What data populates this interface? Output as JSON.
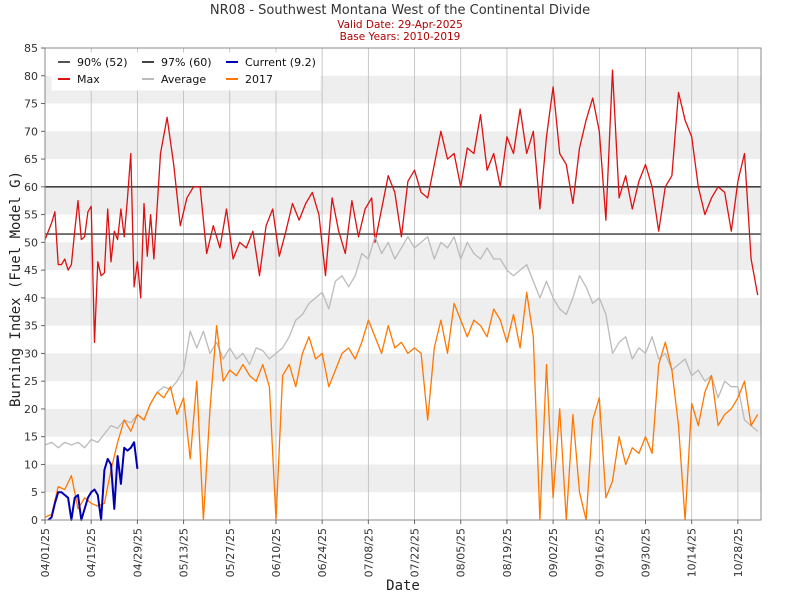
{
  "chart_data": {
    "type": "line",
    "title": "NR08 - Southwest Montana West of the Continental Divide",
    "subtitle_valid": "Valid Date: 29-Apr-2025",
    "subtitle_base": "Base Years: 2010-2019",
    "xlabel": "Date",
    "ylabel": "Burning Index (Fuel Model G)",
    "ylim": [
      0,
      85
    ],
    "yticks": [
      0,
      5,
      10,
      15,
      20,
      25,
      30,
      35,
      40,
      45,
      50,
      55,
      60,
      65,
      70,
      75,
      80,
      85
    ],
    "x_start": "04/01/25",
    "x_end": "11/04/25",
    "xticks": [
      "04/01/25",
      "04/15/25",
      "04/29/25",
      "05/13/25",
      "05/27/25",
      "06/10/25",
      "06/24/25",
      "07/08/25",
      "07/22/25",
      "08/05/25",
      "08/19/25",
      "09/02/25",
      "09/16/25",
      "09/30/25",
      "10/14/25",
      "10/28/25"
    ],
    "grid": "alternating horizontal bands, vertical gridlines at date ticks",
    "legend_placement": "top-left",
    "colors": {
      "p90": "#555555",
      "p97": "#444444",
      "current": "#0000b0",
      "max": "#dd1111",
      "average": "#bbbbbb",
      "y2017": "#ff7700",
      "band": "#eeeeee",
      "grid": "#bbbbbb"
    },
    "legend": [
      {
        "key": "p90",
        "label": "90% (52)"
      },
      {
        "key": "p97",
        "label": "97% (60)"
      },
      {
        "key": "current",
        "label": "Current (9.2)"
      },
      {
        "key": "max",
        "label": "Max"
      },
      {
        "key": "average",
        "label": "Average"
      },
      {
        "key": "y2017",
        "label": "2017"
      }
    ],
    "thresholds": [
      {
        "key": "p90",
        "value": 51.5
      },
      {
        "key": "p97",
        "value": 60
      }
    ],
    "series": [
      {
        "key": "max",
        "name": "Max",
        "x_days": [
          0,
          1,
          2,
          3,
          4,
          5,
          6,
          7,
          8,
          9,
          10,
          11,
          12,
          13,
          14,
          15,
          16,
          17,
          18,
          19,
          20,
          21,
          22,
          23,
          24,
          25,
          26,
          27,
          28,
          29,
          30,
          31,
          32,
          33,
          35,
          37,
          39,
          41,
          43,
          45,
          47,
          49,
          51,
          53,
          55,
          57,
          59,
          61,
          63,
          65,
          67,
          69,
          71,
          73,
          75,
          77,
          79,
          81,
          83,
          85,
          87,
          89,
          91,
          93,
          95,
          97,
          99,
          100,
          102,
          104,
          106,
          108,
          110,
          112,
          114,
          116,
          118,
          120,
          122,
          124,
          126,
          128,
          130,
          132,
          134,
          136,
          138,
          140,
          142,
          144,
          146,
          148,
          150,
          152,
          154,
          156,
          158,
          160,
          162,
          164,
          166,
          168,
          170,
          172,
          174,
          176,
          178,
          180,
          182,
          184,
          186,
          188,
          190,
          192,
          194,
          196,
          198,
          200,
          202,
          204,
          206,
          208,
          210,
          212,
          214,
          216
        ],
        "values": [
          50.5,
          52,
          53.5,
          55.5,
          46,
          46,
          47,
          45,
          46,
          52,
          57.5,
          50.5,
          51,
          55.5,
          56.5,
          32,
          46.5,
          44,
          44.5,
          56,
          46.5,
          52,
          50.5,
          56,
          51,
          58,
          66,
          42,
          46.5,
          40,
          57,
          47.5,
          55,
          47,
          66,
          72.5,
          64,
          53,
          58,
          60,
          60,
          48,
          53,
          49,
          56,
          47,
          50,
          49,
          52,
          44,
          53,
          56,
          47.5,
          52,
          57,
          54,
          57,
          59,
          55,
          44,
          58,
          52,
          48,
          57.5,
          51,
          56,
          58,
          50,
          56,
          62,
          59,
          51,
          61,
          63,
          59,
          58,
          64,
          70,
          65,
          66,
          60,
          67,
          66,
          73,
          63,
          66,
          60,
          69,
          66,
          74,
          66,
          70,
          56,
          69,
          78,
          66,
          64,
          57,
          67,
          72,
          76,
          70,
          54,
          81,
          58,
          62,
          56,
          61,
          64,
          60,
          52,
          60,
          62,
          77,
          72,
          69,
          60,
          55,
          58,
          60,
          59,
          52,
          61,
          66,
          47,
          40.5
        ]
      },
      {
        "key": "average",
        "name": "Average",
        "x_days": [
          0,
          2,
          4,
          6,
          8,
          10,
          12,
          14,
          16,
          18,
          20,
          22,
          24,
          26,
          28,
          30,
          32,
          34,
          36,
          38,
          40,
          42,
          44,
          46,
          48,
          50,
          52,
          54,
          56,
          58,
          60,
          62,
          64,
          66,
          68,
          70,
          72,
          74,
          76,
          78,
          80,
          82,
          84,
          86,
          88,
          90,
          92,
          94,
          96,
          98,
          100,
          102,
          104,
          106,
          108,
          110,
          112,
          114,
          116,
          118,
          120,
          122,
          124,
          126,
          128,
          130,
          132,
          134,
          136,
          138,
          140,
          142,
          144,
          146,
          148,
          150,
          152,
          154,
          156,
          158,
          160,
          162,
          164,
          166,
          168,
          170,
          172,
          174,
          176,
          178,
          180,
          182,
          184,
          186,
          188,
          190,
          192,
          194,
          196,
          198,
          200,
          202,
          204,
          206,
          208,
          210,
          212,
          214,
          216
        ],
        "values": [
          13.5,
          14,
          13,
          14,
          13.5,
          14,
          13,
          14.5,
          14,
          15.5,
          17,
          16.5,
          18,
          17.5,
          19,
          18,
          21,
          23,
          24,
          23.5,
          25,
          27,
          34,
          31,
          34,
          30,
          32,
          29,
          31,
          29,
          30,
          28,
          31,
          30.5,
          29,
          30,
          31,
          33,
          36,
          37,
          39,
          40,
          41,
          38,
          43,
          44,
          42,
          44,
          48,
          47,
          51,
          48,
          50,
          47,
          49,
          51,
          49,
          50,
          51,
          47,
          50,
          49,
          51,
          47,
          50,
          48,
          47,
          49,
          47,
          47,
          45,
          44,
          45,
          46,
          43,
          40,
          43,
          40,
          38,
          37,
          40,
          44,
          42,
          39,
          40,
          37,
          30,
          32,
          33,
          29,
          31,
          30,
          33,
          29,
          30,
          27,
          28,
          29,
          26,
          27,
          25,
          26,
          22,
          25,
          24,
          24,
          18,
          17,
          16
        ]
      },
      {
        "key": "y2017",
        "name": "2017",
        "x_days": [
          0,
          2,
          4,
          6,
          8,
          10,
          12,
          14,
          16,
          18,
          20,
          22,
          24,
          26,
          28,
          30,
          32,
          34,
          36,
          38,
          40,
          42,
          44,
          46,
          48,
          50,
          52,
          54,
          56,
          58,
          60,
          62,
          64,
          66,
          68,
          70,
          72,
          74,
          76,
          78,
          80,
          82,
          84,
          86,
          88,
          90,
          92,
          94,
          96,
          98,
          100,
          102,
          104,
          106,
          108,
          110,
          112,
          114,
          116,
          118,
          120,
          122,
          124,
          126,
          128,
          130,
          132,
          134,
          136,
          138,
          140,
          142,
          144,
          146,
          148,
          150,
          152,
          154,
          156,
          158,
          160,
          162,
          164,
          166,
          168,
          170,
          172,
          174,
          176,
          178,
          180,
          182,
          184,
          186,
          188,
          190,
          192,
          194,
          196,
          198,
          200,
          202,
          204,
          206,
          208,
          210,
          212,
          214,
          216
        ],
        "values": [
          0.5,
          1,
          6,
          5.5,
          8,
          2,
          4,
          3,
          2.5,
          3,
          9,
          14,
          18,
          16,
          19,
          18,
          21,
          23,
          22,
          24,
          19,
          22,
          11,
          25,
          0,
          20,
          35,
          25,
          27,
          26,
          28,
          26,
          25,
          28,
          24,
          0,
          26,
          28,
          24,
          30,
          33,
          29,
          30,
          24,
          27,
          30,
          31,
          29,
          32,
          36,
          33,
          30,
          35,
          31,
          32,
          30,
          31,
          30,
          18,
          31,
          36,
          30,
          39,
          36,
          33,
          36,
          35,
          33,
          38,
          36,
          32,
          37,
          31,
          41,
          33,
          0,
          28,
          4,
          20,
          0,
          19,
          5,
          0,
          18,
          22,
          4,
          7,
          15,
          10,
          13,
          12,
          15,
          12,
          28,
          32,
          27,
          17,
          0,
          21,
          17,
          23,
          26,
          17,
          19,
          20,
          22,
          25,
          17,
          19
        ]
      },
      {
        "key": "current",
        "name": "Current (9.2)",
        "x_days": [
          1,
          2,
          3,
          4,
          5,
          6,
          7,
          8,
          9,
          10,
          11,
          12,
          13,
          14,
          15,
          16,
          17,
          18,
          19,
          20,
          21,
          22,
          23,
          24,
          25,
          26,
          27,
          28
        ],
        "values": [
          0,
          0.5,
          3,
          5,
          5,
          4.5,
          4,
          0,
          4,
          4.5,
          0,
          2,
          4,
          5,
          5.5,
          4.5,
          0,
          9,
          11,
          10,
          2,
          11.5,
          6.5,
          13,
          12.5,
          13,
          14,
          9.2
        ]
      }
    ]
  }
}
